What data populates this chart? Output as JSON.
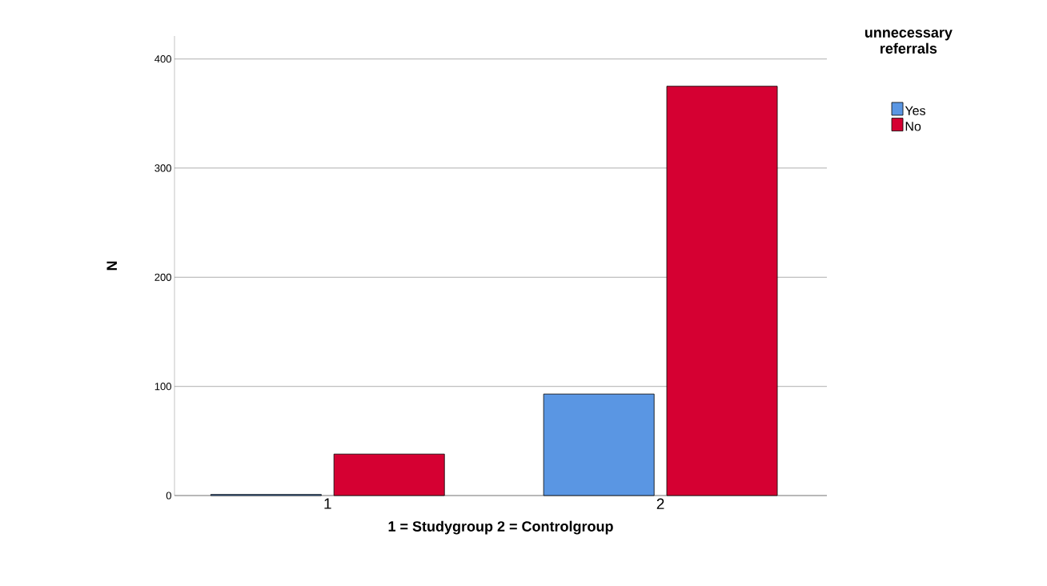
{
  "chart_data": {
    "type": "bar",
    "xlabel": "1 = Studygroup 2 = Controlgroup",
    "ylabel": "N",
    "legend_title": "unnecessary referrals",
    "categories": [
      "1",
      "2"
    ],
    "series": [
      {
        "name": "Yes",
        "color": "#5a96e3",
        "values": [
          1,
          93
        ]
      },
      {
        "name": "No",
        "color": "#d50032",
        "values": [
          38,
          375
        ]
      }
    ],
    "ylim": [
      0,
      421
    ],
    "yticks": [
      0,
      100,
      200,
      300,
      400
    ],
    "grid": "y",
    "legend": "top right"
  }
}
